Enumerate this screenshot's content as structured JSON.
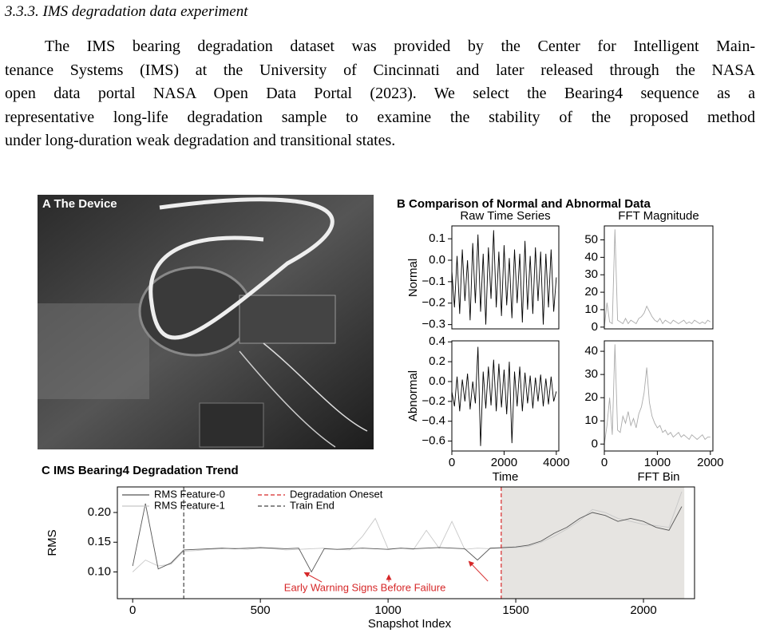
{
  "section": {
    "heading": "3.3.3. IMS degradation data experiment",
    "lines": [
      "The IMS bearing degradation dataset was provided by the Center for Intelligent Main-",
      "tenance Systems (IMS) at the University of Cincinnati and later released through the NASA",
      "open data portal NASA Open Data Portal (2023).  We select the Bearing4 sequence as a",
      "representative long-life degradation sample to examine the stability of the proposed method",
      "under long-duration weak degradation and transitional states."
    ]
  },
  "figure": {
    "panel_a_label": "A The Device",
    "panel_b_title": "B Comparison of Normal and Abnormal Data"
  },
  "chart_data": [
    {
      "type": "line",
      "title": "Raw Time Series",
      "ylabel": "Normal",
      "color": "#000000",
      "x": [
        0,
        100,
        200,
        300,
        400,
        500,
        600,
        700,
        800,
        900,
        1000,
        1100,
        1200,
        1300,
        1400,
        1500,
        1600,
        1700,
        1800,
        1900,
        2000,
        2100,
        2200,
        2300,
        2400,
        2500,
        2600,
        2700,
        2800,
        2900,
        3000,
        3100,
        3200,
        3300,
        3400,
        3500,
        3600,
        3700,
        3800,
        3900,
        4000
      ],
      "values": [
        -0.05,
        -0.22,
        0.02,
        -0.25,
        0.05,
        -0.19,
        0.0,
        -0.28,
        0.08,
        -0.2,
        0.12,
        -0.24,
        0.03,
        -0.3,
        0.06,
        -0.18,
        0.14,
        -0.22,
        0.04,
        -0.26,
        0.07,
        -0.21,
        0.01,
        -0.27,
        0.05,
        -0.2,
        0.03,
        -0.29,
        0.09,
        -0.23,
        0.02,
        -0.25,
        0.06,
        -0.19,
        0.04,
        -0.3,
        0.03,
        -0.22,
        0.05,
        -0.24,
        -0.08
      ],
      "xlim": [
        0,
        4096
      ],
      "ylim": [
        -0.32,
        0.16
      ],
      "yticks": [
        0.1,
        {
          "value": 0,
          "label": "0.0"
        },
        {
          "value": -0.1,
          "label": "−0.1"
        },
        {
          "value": -0.2,
          "label": "−0.2"
        },
        {
          "value": -0.3,
          "label": "−0.3"
        }
      ]
    },
    {
      "type": "line",
      "title": "FFT Magnitude",
      "color": "#aaaaaa",
      "x": [
        0,
        50,
        100,
        150,
        200,
        250,
        300,
        350,
        400,
        450,
        500,
        550,
        600,
        650,
        700,
        750,
        800,
        850,
        900,
        950,
        1000,
        1050,
        1100,
        1150,
        1200,
        1250,
        1300,
        1350,
        1400,
        1450,
        1500,
        1550,
        1600,
        1650,
        1700,
        1750,
        1800,
        1850,
        1900,
        1950,
        2000
      ],
      "values": [
        0,
        14,
        3,
        2,
        56,
        4,
        3,
        2,
        5,
        2,
        4,
        3,
        2,
        5,
        6,
        8,
        12,
        9,
        6,
        4,
        3,
        5,
        2,
        4,
        3,
        2,
        4,
        3,
        2,
        3,
        4,
        2,
        3,
        2,
        4,
        3,
        2,
        3,
        2,
        4,
        3
      ],
      "xlim": [
        0,
        2048
      ],
      "ylim": [
        -1,
        58
      ],
      "yticks": [
        0,
        10,
        20,
        30,
        40,
        50
      ]
    },
    {
      "type": "line",
      "ylabel": "Abnormal",
      "xlabel": "Time",
      "color": "#000000",
      "x": [
        0,
        100,
        200,
        300,
        400,
        500,
        600,
        700,
        800,
        900,
        1000,
        1100,
        1200,
        1300,
        1400,
        1500,
        1600,
        1700,
        1800,
        1900,
        2000,
        2100,
        2200,
        2300,
        2400,
        2500,
        2600,
        2700,
        2800,
        2900,
        3000,
        3100,
        3200,
        3300,
        3400,
        3500,
        3600,
        3700,
        3800,
        3900,
        4000
      ],
      "values": [
        -0.1,
        -0.25,
        0.05,
        -0.3,
        0.02,
        -0.2,
        0.08,
        -0.28,
        0.0,
        -0.22,
        0.35,
        -0.65,
        0.1,
        -0.27,
        0.15,
        -0.24,
        0.22,
        -0.3,
        0.18,
        -0.26,
        0.12,
        -0.33,
        0.2,
        -0.62,
        0.1,
        -0.25,
        0.15,
        -0.3,
        0.09,
        -0.22,
        0.06,
        -0.27,
        0.04,
        -0.2,
        0.07,
        -0.25,
        0.03,
        -0.23,
        0.05,
        -0.2,
        -0.1
      ],
      "xlim": [
        0,
        4096
      ],
      "ylim": [
        -0.7,
        0.41
      ],
      "xticks": [
        0,
        2000,
        4000
      ],
      "yticks": [
        0.4,
        0.2,
        {
          "value": 0,
          "label": "0.0"
        },
        {
          "value": -0.2,
          "label": "−0.2"
        },
        {
          "value": -0.4,
          "label": "−0.4"
        },
        {
          "value": -0.6,
          "label": "−0.6"
        }
      ]
    },
    {
      "type": "line",
      "xlabel": "FFT Bin",
      "color": "#aaaaaa",
      "x": [
        0,
        50,
        100,
        150,
        200,
        250,
        300,
        350,
        400,
        450,
        500,
        550,
        600,
        650,
        700,
        750,
        800,
        850,
        900,
        950,
        1000,
        1050,
        1100,
        1150,
        1200,
        1250,
        1300,
        1350,
        1400,
        1450,
        1500,
        1550,
        1600,
        1650,
        1700,
        1750,
        1800,
        1850,
        1900,
        1950,
        2000
      ],
      "values": [
        0,
        8,
        20,
        4,
        43,
        6,
        5,
        12,
        9,
        14,
        8,
        11,
        7,
        13,
        16,
        22,
        33,
        18,
        12,
        9,
        7,
        8,
        5,
        6,
        4,
        5,
        3,
        4,
        5,
        3,
        4,
        3,
        2,
        4,
        3,
        2,
        3,
        4,
        2,
        3,
        3
      ],
      "xlim": [
        0,
        2048
      ],
      "ylim": [
        -3,
        44.5
      ],
      "xticks": [
        0,
        1000,
        2000
      ],
      "yticks": [
        0,
        10,
        20,
        30,
        40
      ]
    },
    {
      "type": "line",
      "title": "C IMS Bearing4 Degradation Trend",
      "xlabel": "Snapshot Index",
      "ylabel": "RMS",
      "x": [
        0,
        50,
        100,
        150,
        200,
        250,
        300,
        350,
        400,
        450,
        500,
        550,
        600,
        650,
        700,
        750,
        800,
        850,
        900,
        950,
        1000,
        1050,
        1100,
        1150,
        1200,
        1250,
        1300,
        1350,
        1400,
        1450,
        1500,
        1550,
        1600,
        1650,
        1700,
        1750,
        1800,
        1850,
        1900,
        1950,
        2000,
        2050,
        2100,
        2150
      ],
      "series": [
        {
          "name": "RMS Feature-0",
          "color": "#555555",
          "values": [
            0.11,
            0.215,
            0.105,
            0.115,
            0.137,
            0.138,
            0.139,
            0.14,
            0.139,
            0.14,
            0.141,
            0.14,
            0.139,
            0.14,
            0.1,
            0.139,
            0.138,
            0.139,
            0.14,
            0.139,
            0.138,
            0.14,
            0.139,
            0.14,
            0.141,
            0.14,
            0.139,
            0.12,
            0.14,
            0.141,
            0.142,
            0.145,
            0.152,
            0.165,
            0.175,
            0.19,
            0.2,
            0.195,
            0.185,
            0.19,
            0.185,
            0.175,
            0.17,
            0.21
          ]
        },
        {
          "name": "RMS Feature-1",
          "color": "#c8c8c8",
          "values": [
            0.1,
            0.12,
            0.11,
            0.113,
            0.135,
            0.136,
            0.138,
            0.139,
            0.14,
            0.138,
            0.14,
            0.139,
            0.137,
            0.138,
            0.139,
            0.14,
            0.138,
            0.137,
            0.16,
            0.19,
            0.139,
            0.14,
            0.138,
            0.17,
            0.14,
            0.185,
            0.138,
            0.14,
            0.139,
            0.14,
            0.141,
            0.143,
            0.15,
            0.16,
            0.172,
            0.186,
            0.205,
            0.2,
            0.19,
            0.185,
            0.18,
            0.178,
            0.175,
            0.235
          ]
        }
      ],
      "vlines": [
        {
          "name": "Degradation Oneset",
          "value": 1443,
          "color": "#d62728"
        },
        {
          "name": "Train End",
          "value": 200,
          "color": "#444444"
        }
      ],
      "shade": [
        1443,
        2160
      ],
      "shade_color": "#e6e4e1",
      "annotation": {
        "text": "Early Warning Signs Before Failure",
        "color": "#d62728",
        "targets": [
          [
            672,
            0.099
          ],
          [
            1003,
            0.095
          ],
          [
            1316,
            0.118
          ]
        ]
      },
      "xlim": [
        -60,
        2200
      ],
      "ylim": [
        0.055,
        0.243
      ],
      "xticks": [
        0,
        500,
        1000,
        1500,
        2000
      ],
      "yticks": [
        {
          "value": 0.1,
          "label": "0.10"
        },
        0.15,
        {
          "value": 0.2,
          "label": "0.20"
        }
      ]
    }
  ]
}
